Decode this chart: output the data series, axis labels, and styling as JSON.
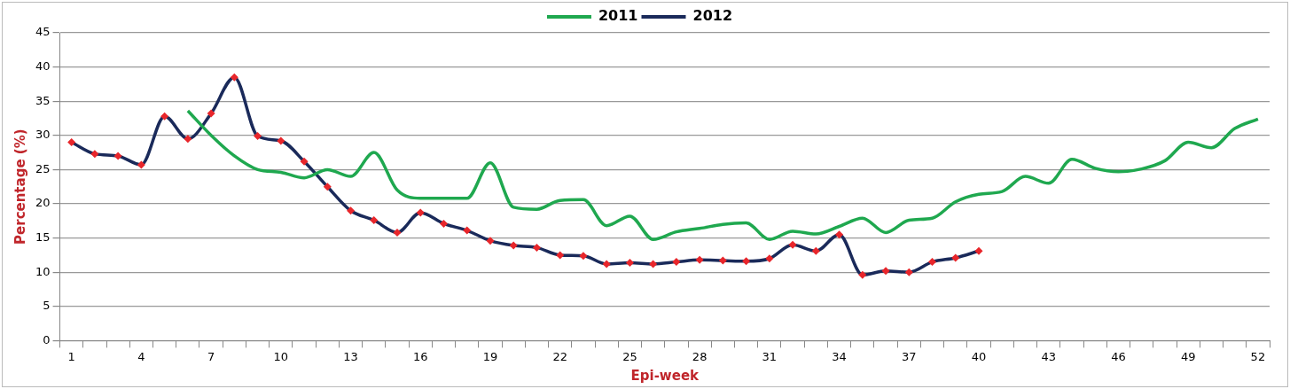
{
  "chart_data": {
    "type": "line",
    "xlabel": "Epi-week",
    "ylabel": "Percentage (%)",
    "categories": [
      "1",
      null,
      null,
      "4",
      null,
      null,
      "7",
      null,
      null,
      "10",
      null,
      null,
      "13",
      null,
      null,
      "16",
      null,
      null,
      "19",
      null,
      null,
      "22",
      null,
      null,
      "25",
      null,
      null,
      "28",
      null,
      null,
      "31",
      null,
      null,
      "34",
      null,
      null,
      "37",
      null,
      null,
      "40",
      null,
      null,
      "43",
      null,
      null,
      "46",
      null,
      null,
      "49",
      null,
      null,
      "52"
    ],
    "series": [
      {
        "name": "2011",
        "color": "#1fa84f",
        "marker": "none",
        "values": [
          null,
          null,
          null,
          null,
          null,
          33.6,
          30,
          27,
          25,
          24.6,
          23.8,
          25,
          24,
          27.5,
          22,
          20.8,
          20.8,
          20.8,
          26,
          19.5,
          19.2,
          20.5,
          20.6,
          16.8,
          18.2,
          14.8,
          15.9,
          16.4,
          17,
          17.2,
          14.8,
          16,
          15.6,
          16.7,
          17.9,
          15.8,
          17.6,
          17.9,
          20.3,
          21.4,
          21.8,
          24,
          23,
          26.5,
          25.2,
          24.7,
          25.1,
          26.3,
          29,
          28.2,
          31,
          32.4
        ]
      },
      {
        "name": "2012",
        "color": "#1a2a5a",
        "marker": "diamond",
        "colors": [
          "#e8262b",
          "#e8262b",
          "#e8262b",
          "#e8262b",
          "#e8262b",
          "#e8262b",
          "#e8262b",
          "#e8262b",
          "#e8262b",
          "#e8262b",
          "#e8262b",
          "#e8262b",
          "#e8262b",
          "#e8262b",
          "#e8262b",
          "#e8262b",
          "#e8262b",
          "#e8262b",
          "#e8262b",
          "#e8262b",
          "#e8262b",
          "#e8262b",
          "#e8262b",
          "#e8262b",
          "#e8262b",
          "#e8262b",
          "#e8262b",
          "#e8262b",
          "#e8262b",
          "#e8262b",
          "#e8262b",
          "#e8262b",
          "#e8262b",
          "#e8262b",
          "#e8262b",
          "#e8262b",
          "#e8262b",
          "#e8262b",
          "#e8262b",
          "#e8262b",
          null,
          null,
          null,
          null,
          null,
          null,
          null,
          null,
          null,
          null,
          null,
          null
        ],
        "values": [
          29,
          27.3,
          27,
          25.7,
          32.8,
          29.5,
          33.2,
          38.5,
          29.9,
          29.2,
          26.2,
          22.5,
          19,
          17.6,
          15.8,
          18.7,
          17.1,
          16.1,
          14.6,
          13.9,
          13.6,
          12.5,
          12.4,
          11.2,
          11.4,
          11.2,
          11.5,
          11.8,
          11.7,
          11.6,
          12,
          14,
          13.1,
          15.5,
          9.6,
          10.2,
          10,
          11.5,
          12.1,
          13.1,
          null,
          null,
          null,
          null,
          null,
          null,
          null,
          null,
          null,
          null,
          null,
          null
        ]
      }
    ],
    "ylim": [
      0,
      45
    ],
    "yticks": [
      0,
      5,
      10,
      15,
      20,
      25,
      30,
      35,
      40,
      45
    ],
    "grid": "y",
    "legend": "top"
  }
}
